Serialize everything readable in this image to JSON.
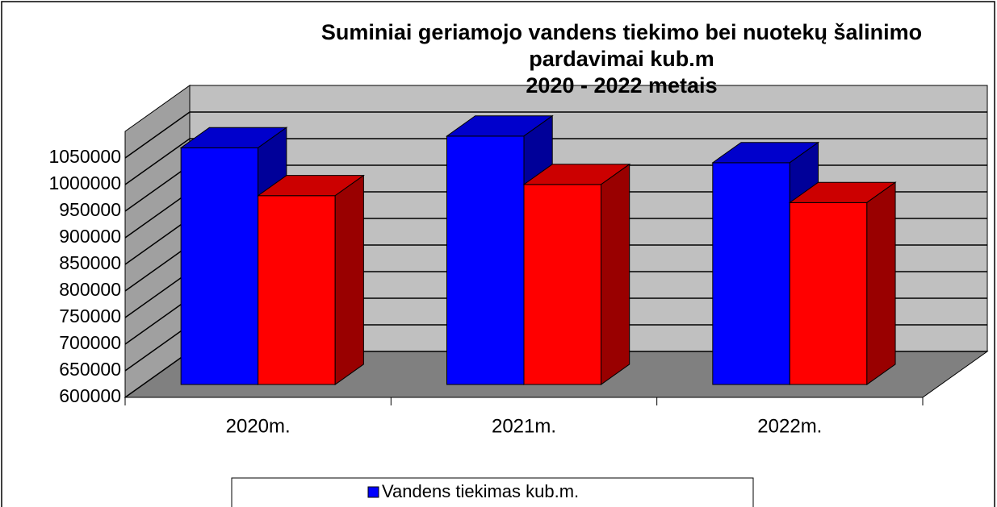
{
  "chart_data": {
    "type": "bar3d",
    "title": [
      "Suminiai geriamojo vandens tiekimo bei nuotekų šalinimo",
      "pardavimai kub.m",
      "2020 - 2022 metais"
    ],
    "categories": [
      "2020m.",
      "2021m.",
      "2022m."
    ],
    "series": [
      {
        "name": "Vandens tiekimas kub.m.",
        "color": "#0000ff",
        "values": [
          1045000,
          1067000,
          1017000
        ]
      },
      {
        "color": "#ff0000",
        "values": [
          955000,
          976000,
          942000
        ]
      }
    ],
    "ylim": [
      600000,
      1100000
    ],
    "yticks": [
      600000,
      650000,
      700000,
      750000,
      800000,
      850000,
      900000,
      950000,
      1000000,
      1050000
    ],
    "grid": true
  }
}
